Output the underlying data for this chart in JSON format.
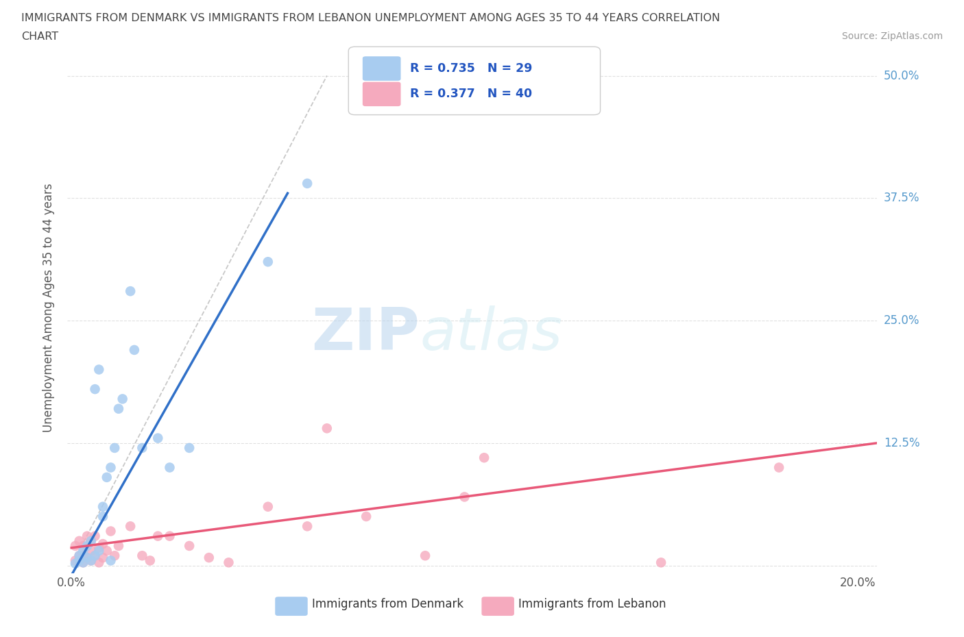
{
  "title_line1": "IMMIGRANTS FROM DENMARK VS IMMIGRANTS FROM LEBANON UNEMPLOYMENT AMONG AGES 35 TO 44 YEARS CORRELATION",
  "title_line2": "CHART",
  "source": "Source: ZipAtlas.com",
  "ylabel": "Unemployment Among Ages 35 to 44 years",
  "xlim": [
    -0.001,
    0.205
  ],
  "ylim": [
    -0.008,
    0.535
  ],
  "xticks": [
    0.0,
    0.05,
    0.1,
    0.15,
    0.2
  ],
  "xtick_labels": [
    "0.0%",
    "",
    "",
    "",
    "20.0%"
  ],
  "yticks": [
    0.0,
    0.125,
    0.25,
    0.375,
    0.5
  ],
  "ytick_labels": [
    "",
    "12.5%",
    "25.0%",
    "37.5%",
    "50.0%"
  ],
  "denmark_R": 0.735,
  "denmark_N": 29,
  "lebanon_R": 0.377,
  "lebanon_N": 40,
  "denmark_color": "#A8CCF0",
  "lebanon_color": "#F5AABE",
  "denmark_line_color": "#3070C8",
  "lebanon_line_color": "#E85878",
  "ref_line_color": "#C8C8C8",
  "grid_color": "#E0E0E0",
  "background_color": "#FFFFFF",
  "legend_label_color": "#2255C0",
  "denmark_x": [
    0.001,
    0.002,
    0.002,
    0.003,
    0.003,
    0.004,
    0.004,
    0.005,
    0.005,
    0.006,
    0.006,
    0.007,
    0.007,
    0.008,
    0.008,
    0.009,
    0.01,
    0.01,
    0.011,
    0.012,
    0.013,
    0.015,
    0.016,
    0.018,
    0.022,
    0.025,
    0.03,
    0.05,
    0.06
  ],
  "denmark_y": [
    0.002,
    0.005,
    0.01,
    0.003,
    0.015,
    0.008,
    0.02,
    0.005,
    0.025,
    0.01,
    0.18,
    0.015,
    0.2,
    0.05,
    0.06,
    0.09,
    0.1,
    0.005,
    0.12,
    0.16,
    0.17,
    0.28,
    0.22,
    0.12,
    0.13,
    0.1,
    0.12,
    0.31,
    0.39
  ],
  "lebanon_x": [
    0.001,
    0.001,
    0.002,
    0.002,
    0.002,
    0.003,
    0.003,
    0.003,
    0.004,
    0.004,
    0.005,
    0.005,
    0.005,
    0.006,
    0.006,
    0.007,
    0.007,
    0.008,
    0.008,
    0.009,
    0.01,
    0.011,
    0.012,
    0.015,
    0.018,
    0.02,
    0.022,
    0.025,
    0.03,
    0.035,
    0.04,
    0.05,
    0.06,
    0.065,
    0.075,
    0.09,
    0.1,
    0.105,
    0.15,
    0.18
  ],
  "lebanon_y": [
    0.005,
    0.02,
    0.005,
    0.01,
    0.025,
    0.003,
    0.01,
    0.02,
    0.008,
    0.03,
    0.005,
    0.015,
    0.025,
    0.01,
    0.03,
    0.003,
    0.018,
    0.008,
    0.022,
    0.015,
    0.035,
    0.01,
    0.02,
    0.04,
    0.01,
    0.005,
    0.03,
    0.03,
    0.02,
    0.008,
    0.003,
    0.06,
    0.04,
    0.14,
    0.05,
    0.01,
    0.07,
    0.11,
    0.003,
    0.1
  ],
  "figsize": [
    14.06,
    9.3
  ],
  "dpi": 100
}
